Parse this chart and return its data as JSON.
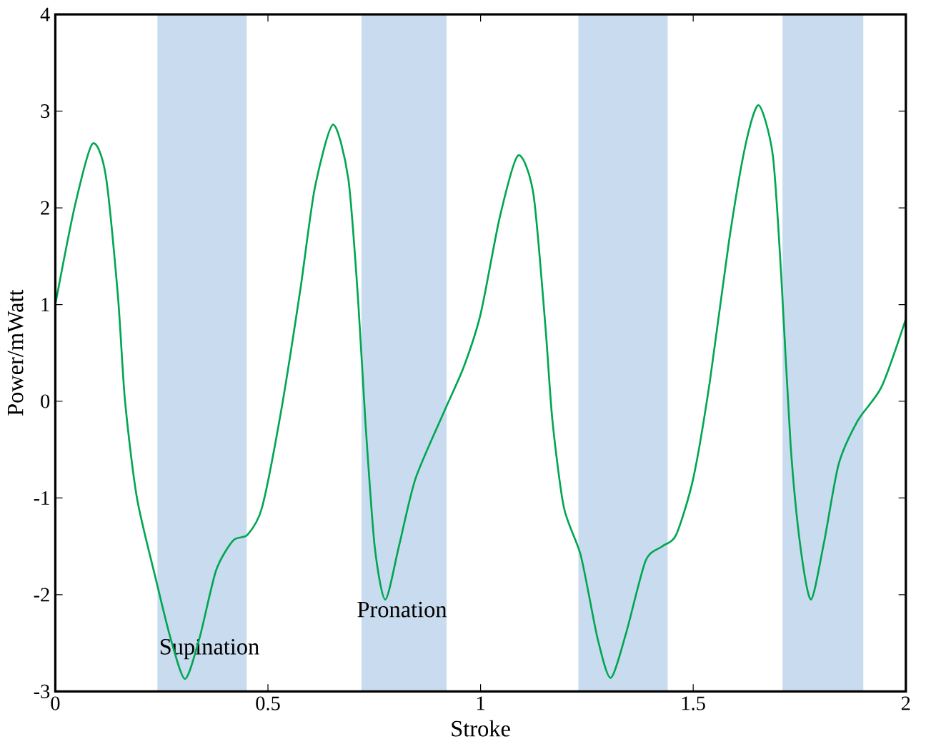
{
  "chart_data": {
    "type": "line",
    "xlabel": "Stroke",
    "ylabel": "Power/mWatt",
    "xlim": [
      0,
      2
    ],
    "ylim": [
      -3,
      4
    ],
    "xticks": [
      0,
      0.5,
      1,
      1.5,
      2
    ],
    "yticks": [
      -3,
      -2,
      -1,
      0,
      1,
      2,
      3,
      4
    ],
    "series": [
      {
        "color": "#00a651",
        "x": [
          0,
          0.045,
          0.087,
          0.118,
          0.147,
          0.164,
          0.192,
          0.237,
          0.271,
          0.305,
          0.339,
          0.378,
          0.418,
          0.452,
          0.486,
          0.531,
          0.576,
          0.61,
          0.653,
          0.689,
          0.712,
          0.729,
          0.751,
          0.776,
          0.808,
          0.847,
          0.915,
          0.96,
          1.0,
          1.045,
          1.088,
          1.124,
          1.152,
          1.169,
          1.196,
          1.236,
          1.275,
          1.306,
          1.342,
          1.388,
          1.427,
          1.46,
          1.5,
          1.539,
          1.584,
          1.623,
          1.654,
          1.687,
          1.707,
          1.729,
          1.752,
          1.777,
          1.808,
          1.842,
          1.887,
          1.943,
          2.0
        ],
        "values": [
          1.0,
          2.0,
          2.66,
          2.35,
          1.1,
          0.0,
          -1.0,
          -1.85,
          -2.45,
          -2.87,
          -2.45,
          -1.75,
          -1.44,
          -1.38,
          -1.1,
          -0.1,
          1.15,
          2.2,
          2.86,
          2.3,
          1.05,
          -0.2,
          -1.5,
          -2.05,
          -1.5,
          -0.8,
          -0.1,
          0.35,
          0.9,
          1.9,
          2.54,
          2.15,
          0.8,
          -0.2,
          -1.1,
          -1.6,
          -2.45,
          -2.86,
          -2.4,
          -1.65,
          -1.5,
          -1.38,
          -0.8,
          0.2,
          1.65,
          2.65,
          3.06,
          2.55,
          1.3,
          -0.45,
          -1.5,
          -2.05,
          -1.45,
          -0.65,
          -0.2,
          0.15,
          0.85
        ]
      }
    ],
    "bands": [
      {
        "axis": "x",
        "from": 0.24,
        "to": 0.45,
        "label": "Supination",
        "color": "#c9dcef"
      },
      {
        "axis": "x",
        "from": 0.72,
        "to": 0.92,
        "label": "Pronation",
        "color": "#c9dcef"
      },
      {
        "axis": "x",
        "from": 1.23,
        "to": 1.44,
        "color": "#c9dcef"
      },
      {
        "axis": "x",
        "from": 1.71,
        "to": 1.9,
        "color": "#c9dcef"
      }
    ],
    "grid": false,
    "marker": "none",
    "line_style": "solid"
  }
}
